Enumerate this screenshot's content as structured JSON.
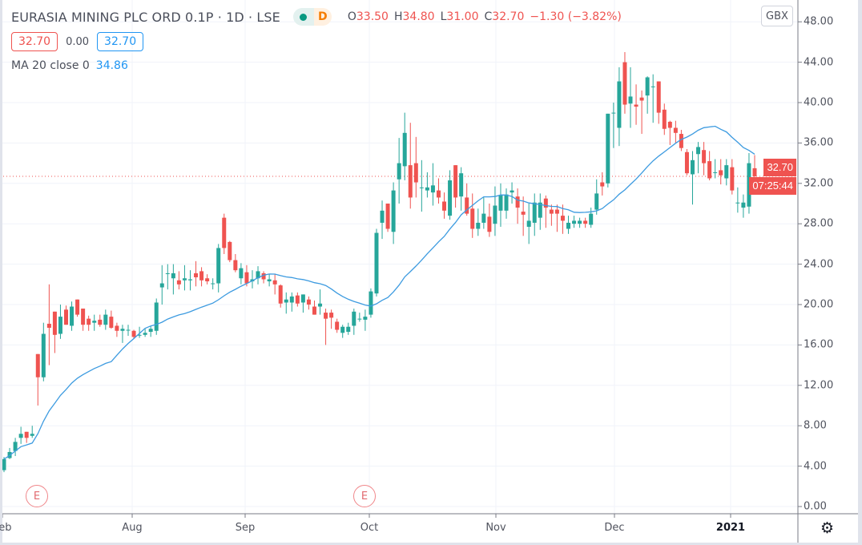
{
  "header": {
    "symbol_title": "EURASIA MINING PLC ORD 0.1P · 1D · LSE",
    "market_status_color": "#089981",
    "delay_badge": "D",
    "ohlc": {
      "o_label": "O",
      "o": "33.50",
      "h_label": "H",
      "h": "34.80",
      "l_label": "L",
      "l": "31.00",
      "c_label": "C",
      "c": "32.70",
      "change": "−1.30 (−3.82%)"
    },
    "bid": "32.70",
    "spread": "0.00",
    "ask": "32.70",
    "indicator_label": "MA 20 close 0",
    "indicator_value": "34.86"
  },
  "price_axis": {
    "currency": "GBX",
    "last_price_label": "32.70",
    "countdown": "07:25:44"
  },
  "time_axis": {
    "settings_icon": "gear-icon"
  },
  "events": [
    {
      "label": "E",
      "type": "earnings"
    },
    {
      "label": "E",
      "type": "earnings"
    }
  ],
  "chart_data": {
    "type": "candlestick",
    "title": "EURASIA MINING PLC ORD 0.1P · 1D · LSE",
    "ylim": [
      0,
      48
    ],
    "y_ticks": [
      "0.00",
      "4.00",
      "8.00",
      "12.00",
      "16.00",
      "20.00",
      "24.00",
      "28.00",
      "32.00",
      "36.00",
      "40.00",
      "44.00",
      "48.00"
    ],
    "x_ticks": [
      "Feb",
      "Aug",
      "Sep",
      "Oct",
      "Nov",
      "Dec",
      "2021"
    ],
    "grid": true,
    "colors": {
      "up": "#26a69a",
      "down": "#ef5350",
      "ma": "#3d9be0",
      "last_price": "#ef5350"
    },
    "last_price": 32.7,
    "overlay": {
      "name": "MA 20 close 0",
      "type": "sma",
      "period": 20,
      "last_value": 34.86
    },
    "ohlc_fields": [
      "open",
      "high",
      "low",
      "close"
    ],
    "candles": [
      [
        3.6,
        4.9,
        3.4,
        4.7
      ],
      [
        4.8,
        5.8,
        4.7,
        5.4
      ],
      [
        5.5,
        6.8,
        5.0,
        6.4
      ],
      [
        6.8,
        7.9,
        6.2,
        7.2
      ],
      [
        7.4,
        7.4,
        6.3,
        6.8
      ],
      [
        7.0,
        8.0,
        6.8,
        7.2
      ],
      [
        15.1,
        15.1,
        10.0,
        12.8
      ],
      [
        12.8,
        18.2,
        12.4,
        17.1
      ],
      [
        18.1,
        22.0,
        14.0,
        17.7
      ],
      [
        19.3,
        19.3,
        15.2,
        17.0
      ],
      [
        17.1,
        20.0,
        16.6,
        18.8
      ],
      [
        19.5,
        19.9,
        18.0,
        18.0
      ],
      [
        17.9,
        20.3,
        17.4,
        19.8
      ],
      [
        20.5,
        20.5,
        18.8,
        19.0
      ],
      [
        19.6,
        19.6,
        17.4,
        18.0
      ],
      [
        18.6,
        18.9,
        17.4,
        18.0
      ],
      [
        18.2,
        19.0,
        17.4,
        18.4
      ],
      [
        18.5,
        19.0,
        17.8,
        18.0
      ],
      [
        18.0,
        19.5,
        17.5,
        19.0
      ],
      [
        18.8,
        19.4,
        17.6,
        17.7
      ],
      [
        17.9,
        18.2,
        16.8,
        17.4
      ],
      [
        17.4,
        18.0,
        16.2,
        17.6
      ],
      [
        17.5,
        18.0,
        16.9,
        17.5
      ],
      [
        17.4,
        17.5,
        16.6,
        16.8
      ],
      [
        17.0,
        17.8,
        16.7,
        17.0
      ],
      [
        17.0,
        17.6,
        16.8,
        17.2
      ],
      [
        17.3,
        17.9,
        16.8,
        17.6
      ],
      [
        17.4,
        20.6,
        17.0,
        20.2
      ],
      [
        21.7,
        23.9,
        20.0,
        22.1
      ],
      [
        23.1,
        24.0,
        21.5,
        23.1
      ],
      [
        22.6,
        24.0,
        21.0,
        23.1
      ],
      [
        22.4,
        23.3,
        21.5,
        22.0
      ],
      [
        22.4,
        23.9,
        21.4,
        22.6
      ],
      [
        22.4,
        23.4,
        21.4,
        22.5
      ],
      [
        23.1,
        24.3,
        21.8,
        22.7
      ],
      [
        23.3,
        23.7,
        21.8,
        22.4
      ],
      [
        22.6,
        23.0,
        22.0,
        22.3
      ],
      [
        22.1,
        22.6,
        21.5,
        22.1
      ],
      [
        22.1,
        26.0,
        21.2,
        25.6
      ],
      [
        28.6,
        29.0,
        25.0,
        25.6
      ],
      [
        26.2,
        26.3,
        24.2,
        24.4
      ],
      [
        24.4,
        25.0,
        23.2,
        23.4
      ],
      [
        22.6,
        24.1,
        22.0,
        23.6
      ],
      [
        23.2,
        23.9,
        21.8,
        22.1
      ],
      [
        22.3,
        23.4,
        21.6,
        22.5
      ],
      [
        22.6,
        23.8,
        22.0,
        23.3
      ],
      [
        23.1,
        23.3,
        22.1,
        22.5
      ],
      [
        22.3,
        23.0,
        21.8,
        22.5
      ],
      [
        22.4,
        23.0,
        21.0,
        22.0
      ],
      [
        21.9,
        22.0,
        19.7,
        20.1
      ],
      [
        20.2,
        21.2,
        19.1,
        20.5
      ],
      [
        20.2,
        21.2,
        19.3,
        20.8
      ],
      [
        20.9,
        21.2,
        19.8,
        20.1
      ],
      [
        20.2,
        21.0,
        19.2,
        21.0
      ],
      [
        20.5,
        20.8,
        19.5,
        20.0
      ],
      [
        19.8,
        20.4,
        19.0,
        19.0
      ],
      [
        19.8,
        21.5,
        19.0,
        20.1
      ],
      [
        19.2,
        19.6,
        16.0,
        18.6
      ],
      [
        19.2,
        19.5,
        17.6,
        18.7
      ],
      [
        18.3,
        18.6,
        17.2,
        17.5
      ],
      [
        17.2,
        18.0,
        16.7,
        17.8
      ],
      [
        17.3,
        18.2,
        17.0,
        17.8
      ],
      [
        17.9,
        19.6,
        17.0,
        19.3
      ],
      [
        18.6,
        19.2,
        18.3,
        18.6
      ],
      [
        18.5,
        19.5,
        17.4,
        18.8
      ],
      [
        19.0,
        21.6,
        18.7,
        21.3
      ],
      [
        21.1,
        27.5,
        20.8,
        27.1
      ],
      [
        28.1,
        30.3,
        26.5,
        29.3
      ],
      [
        30.0,
        30.0,
        27.2,
        27.5
      ],
      [
        27.2,
        32.1,
        26.0,
        31.3
      ],
      [
        32.4,
        36.5,
        30.0,
        34.0
      ],
      [
        33.7,
        39.0,
        32.3,
        37.0
      ],
      [
        33.8,
        38.0,
        29.5,
        30.6
      ],
      [
        34.0,
        36.6,
        30.6,
        32.1
      ],
      [
        31.6,
        34.3,
        29.2,
        31.6
      ],
      [
        31.3,
        33.1,
        30.6,
        31.6
      ],
      [
        31.1,
        34.0,
        29.8,
        31.8
      ],
      [
        31.3,
        32.5,
        30.0,
        30.6
      ],
      [
        30.2,
        31.1,
        28.5,
        29.3
      ],
      [
        28.8,
        33.3,
        28.4,
        32.3
      ],
      [
        33.8,
        33.8,
        29.6,
        30.6
      ],
      [
        30.7,
        33.6,
        29.3,
        33.0
      ],
      [
        30.6,
        32.0,
        28.8,
        29.0
      ],
      [
        29.5,
        31.0,
        26.6,
        27.5
      ],
      [
        27.5,
        29.5,
        26.8,
        28.1
      ],
      [
        28.1,
        30.6,
        27.5,
        29.0
      ],
      [
        28.7,
        30.0,
        26.7,
        27.2
      ],
      [
        28.0,
        31.7,
        26.8,
        29.8
      ],
      [
        29.3,
        32.0,
        27.7,
        30.8
      ],
      [
        29.3,
        31.5,
        28.5,
        30.9
      ],
      [
        31.1,
        32.1,
        30.0,
        31.3
      ],
      [
        30.7,
        31.5,
        28.0,
        29.6
      ],
      [
        29.2,
        30.7,
        26.8,
        28.9
      ],
      [
        27.7,
        30.0,
        26.0,
        28.3
      ],
      [
        28.1,
        31.0,
        26.8,
        30.1
      ],
      [
        28.6,
        31.0,
        27.4,
        30.1
      ],
      [
        30.5,
        30.8,
        27.6,
        29.6
      ],
      [
        29.4,
        29.9,
        27.8,
        29.0
      ],
      [
        29.4,
        29.9,
        27.2,
        29.0
      ],
      [
        28.8,
        29.9,
        27.0,
        28.3
      ],
      [
        27.5,
        28.8,
        27.0,
        28.1
      ],
      [
        28.0,
        28.8,
        27.6,
        28.3
      ],
      [
        28.0,
        28.6,
        27.6,
        28.3
      ],
      [
        28.3,
        28.6,
        27.6,
        28.0
      ],
      [
        27.9,
        29.6,
        27.6,
        29.0
      ],
      [
        29.4,
        32.4,
        28.9,
        31.0
      ],
      [
        32.1,
        33.1,
        30.8,
        31.7
      ],
      [
        32.0,
        38.9,
        31.6,
        38.9
      ],
      [
        39.0,
        40.0,
        35.5,
        39.0
      ],
      [
        37.5,
        43.5,
        35.7,
        42.1
      ],
      [
        44.0,
        45.0,
        38.9,
        39.8
      ],
      [
        39.9,
        43.5,
        37.5,
        40.6
      ],
      [
        39.8,
        41.8,
        37.8,
        39.6
      ],
      [
        40.5,
        41.2,
        36.9,
        40.2
      ],
      [
        40.7,
        42.6,
        38.9,
        42.5
      ],
      [
        41.6,
        42.8,
        38.0,
        41.6
      ],
      [
        42.1,
        42.1,
        37.9,
        39.0
      ],
      [
        39.3,
        39.9,
        36.8,
        37.4
      ],
      [
        38.1,
        38.2,
        35.8,
        37.5
      ],
      [
        37.5,
        38.2,
        36.0,
        37.0
      ],
      [
        36.9,
        37.3,
        35.2,
        35.5
      ],
      [
        35.1,
        35.4,
        32.8,
        33.0
      ],
      [
        32.9,
        35.2,
        29.9,
        34.3
      ],
      [
        34.9,
        36.1,
        33.0,
        35.6
      ],
      [
        35.3,
        36.1,
        32.8,
        34.0
      ],
      [
        34.2,
        35.2,
        32.3,
        32.5
      ],
      [
        33.1,
        34.4,
        32.5,
        33.1
      ],
      [
        33.3,
        34.4,
        31.9,
        32.8
      ],
      [
        32.5,
        34.4,
        31.8,
        33.8
      ],
      [
        33.6,
        34.4,
        30.9,
        31.3
      ],
      [
        30.1,
        31.6,
        29.1,
        30.1
      ],
      [
        29.6,
        30.9,
        28.6,
        30.1
      ],
      [
        29.7,
        35.0,
        29.0,
        34.0
      ],
      [
        33.5,
        34.8,
        31.0,
        32.7
      ]
    ]
  }
}
